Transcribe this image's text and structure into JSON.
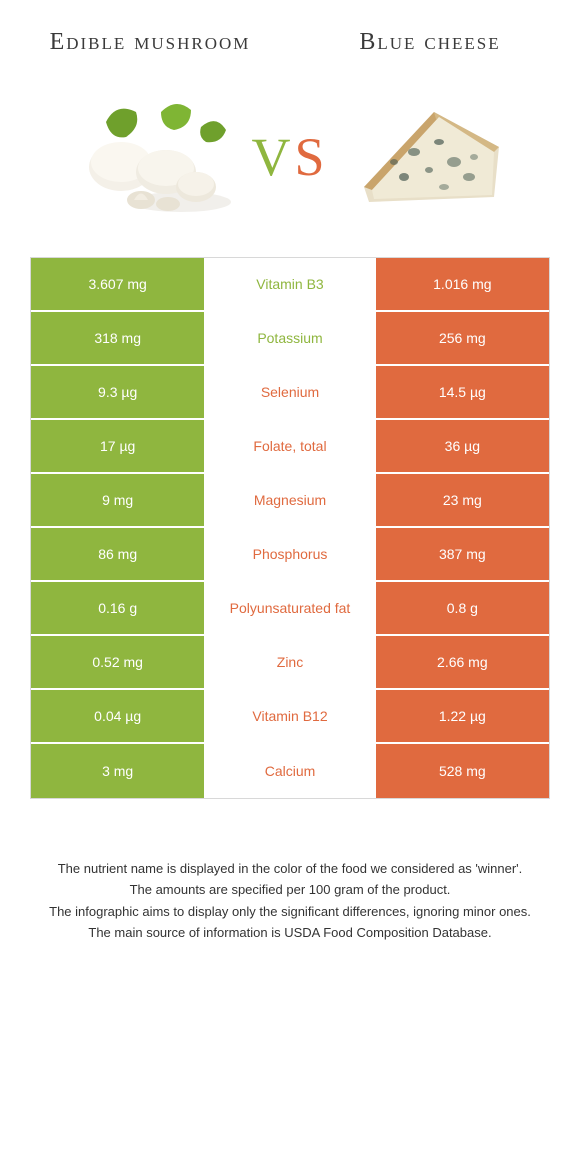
{
  "header": {
    "left_title": "Edible mushroom",
    "right_title": "Blue cheese"
  },
  "vs": {
    "v": "V",
    "s": "S"
  },
  "colors": {
    "left": "#8fb63f",
    "right": "#e06a3f",
    "mid_bg": "#ffffff",
    "border": "#d8d8d8",
    "text_dark": "#3a3a3a"
  },
  "table": {
    "rows": [
      {
        "left": "3.607 mg",
        "mid": "Vitamin B3",
        "right": "1.016 mg",
        "winner": "left"
      },
      {
        "left": "318 mg",
        "mid": "Potassium",
        "right": "256 mg",
        "winner": "left"
      },
      {
        "left": "9.3 µg",
        "mid": "Selenium",
        "right": "14.5 µg",
        "winner": "right"
      },
      {
        "left": "17 µg",
        "mid": "Folate, total",
        "right": "36 µg",
        "winner": "right"
      },
      {
        "left": "9 mg",
        "mid": "Magnesium",
        "right": "23 mg",
        "winner": "right"
      },
      {
        "left": "86 mg",
        "mid": "Phosphorus",
        "right": "387 mg",
        "winner": "right"
      },
      {
        "left": "0.16 g",
        "mid": "Polyunsaturated fat",
        "right": "0.8 g",
        "winner": "right"
      },
      {
        "left": "0.52 mg",
        "mid": "Zinc",
        "right": "2.66 mg",
        "winner": "right"
      },
      {
        "left": "0.04 µg",
        "mid": "Vitamin B12",
        "right": "1.22 µg",
        "winner": "right"
      },
      {
        "left": "3 mg",
        "mid": "Calcium",
        "right": "528 mg",
        "winner": "right"
      }
    ]
  },
  "footnotes": [
    "The nutrient name is displayed in the color of the food we considered as 'winner'.",
    "The amounts are specified per 100 gram of the product.",
    "The infographic aims to display only the significant differences, ignoring minor ones.",
    "The main source of information is USDA Food Composition Database."
  ]
}
